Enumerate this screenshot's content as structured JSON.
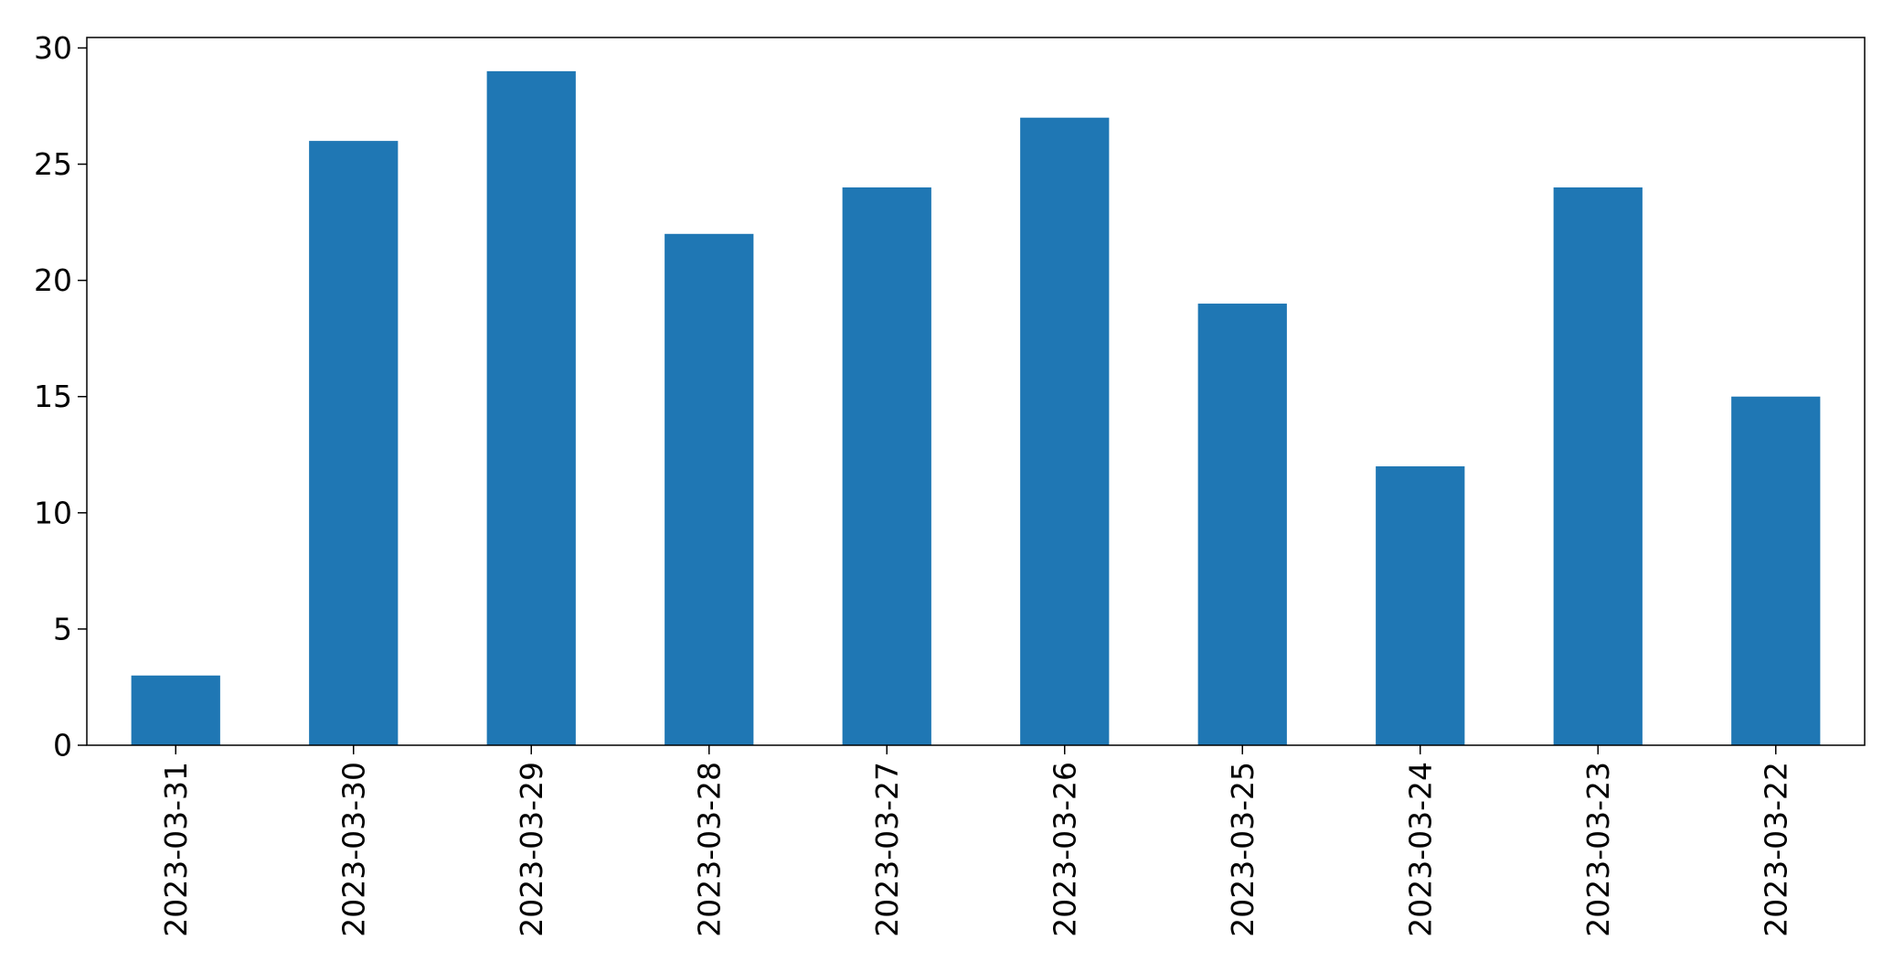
{
  "chart_data": {
    "type": "bar",
    "categories": [
      "2023-03-31",
      "2023-03-30",
      "2023-03-29",
      "2023-03-28",
      "2023-03-27",
      "2023-03-26",
      "2023-03-25",
      "2023-03-24",
      "2023-03-23",
      "2023-03-22"
    ],
    "values": [
      3,
      26,
      29,
      22,
      24,
      27,
      19,
      12,
      24,
      15
    ],
    "title": "",
    "xlabel": "",
    "ylabel": "",
    "ylim": [
      0,
      30.45
    ],
    "yticks": [
      0,
      5,
      10,
      15,
      20,
      25,
      30
    ],
    "grid": false,
    "bar_color": "#1f77b4"
  }
}
